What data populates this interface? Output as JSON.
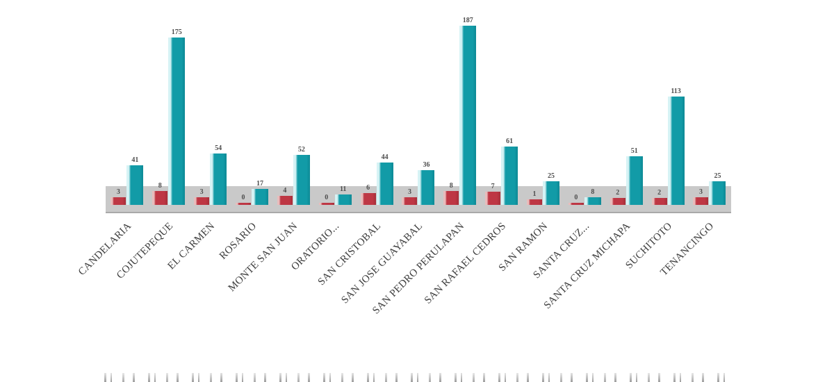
{
  "chart_data": {
    "type": "bar",
    "title": "",
    "categories": [
      "CANDELARIA",
      "COJUTEPEQUE",
      "EL CARMEN",
      "ROSARIO",
      "MONTE SAN JUAN",
      "ORATORIO...",
      "SAN CRISTOBAL",
      "SAN JOSE GUAYABAL",
      "SAN PEDRO PERULAPAN",
      "SAN RAFAEL CEDROS",
      "SAN RAMON",
      "SANTA CRUZ...",
      "SANTA CRUZ MICHAPA",
      "SUCHITOTO",
      "TENANCINGO"
    ],
    "series": [
      {
        "name": "series-1-red",
        "color": "#be3744",
        "values": [
          3,
          8,
          3,
          0,
          4,
          0,
          6,
          3,
          8,
          7,
          1,
          0,
          2,
          2,
          3
        ]
      },
      {
        "name": "series-2-teal",
        "color": "#129ba7",
        "values": [
          41,
          175,
          54,
          17,
          52,
          11,
          44,
          36,
          187,
          61,
          25,
          8,
          51,
          113,
          25
        ]
      }
    ],
    "data_labels": true,
    "legend_position": "none",
    "grid": false,
    "xlabel": "",
    "ylabel": "",
    "ylim": [
      0,
      200
    ],
    "x_axis_label_rotation_deg": -45
  },
  "colors": {
    "bar_red": "#be3744",
    "bar_teal": "#129ba7",
    "floor_band": "#c9c9c9",
    "value_label": "#4d4d4d",
    "axis_label": "#3d3d3d",
    "background": "#ffffff"
  }
}
